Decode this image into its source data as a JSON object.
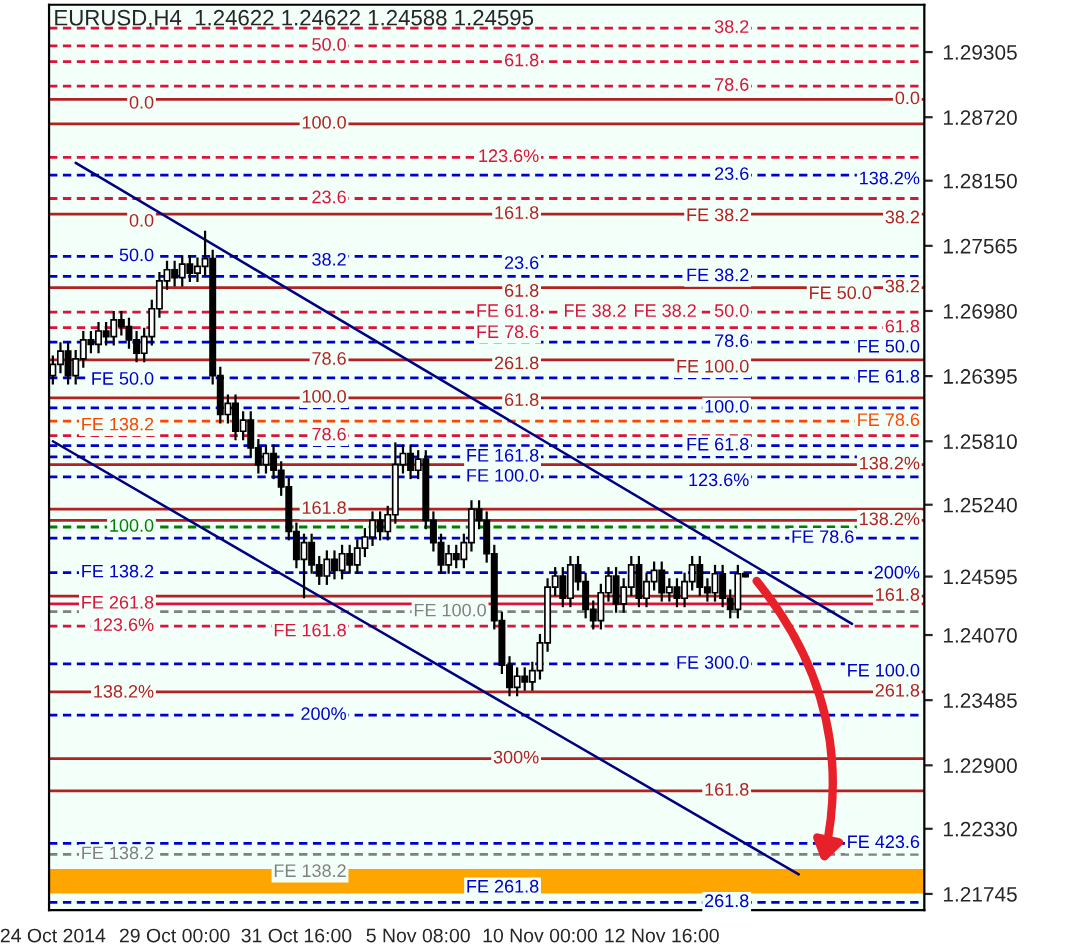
{
  "chart_data": {
    "type": "candlestick",
    "title": "EURUSD,H4  1.24622 1.24622 1.24588 1.24595",
    "categories": [
      "24 Oct 2014",
      null,
      null,
      null,
      null,
      null,
      null,
      null,
      null,
      null,
      null,
      null,
      null,
      null,
      null,
      null,
      "29 Oct 00:00",
      null,
      null,
      null,
      null,
      null,
      null,
      null,
      null,
      null,
      null,
      null,
      null,
      null,
      null,
      null,
      "31 Oct 16:00",
      null,
      null,
      null,
      null,
      null,
      null,
      null,
      null,
      null,
      null,
      null,
      null,
      null,
      null,
      null,
      "5 Nov 08:00",
      null,
      null,
      null,
      null,
      null,
      null,
      null,
      null,
      null,
      null,
      null,
      null,
      null,
      null,
      null,
      "10 Nov 00:00",
      null,
      null,
      null,
      null,
      null,
      null,
      null,
      null,
      null,
      null,
      null,
      null,
      null,
      null,
      null,
      "12 Nov 16:00",
      null,
      null,
      null,
      null,
      null,
      null,
      null,
      null,
      null,
      null,
      null,
      null,
      null,
      null,
      null,
      null,
      null,
      null,
      null,
      null,
      null,
      null,
      null,
      null,
      null,
      null,
      null,
      null,
      null,
      null,
      null,
      null,
      null,
      null
    ],
    "ohlc": [
      [
        1.264,
        1.2658,
        1.2632,
        1.265
      ],
      [
        1.265,
        1.267,
        1.2642,
        1.2662
      ],
      [
        1.2662,
        1.267,
        1.2632,
        1.264
      ],
      [
        1.264,
        1.2663,
        1.2632,
        1.2655
      ],
      [
        1.2655,
        1.268,
        1.2647,
        1.2672
      ],
      [
        1.2672,
        1.268,
        1.266,
        1.2668
      ],
      [
        1.2668,
        1.2688,
        1.266,
        1.268
      ],
      [
        1.268,
        1.2688,
        1.2667,
        1.2675
      ],
      [
        1.2675,
        1.2698,
        1.2667,
        1.269
      ],
      [
        1.269,
        1.2698,
        1.2676,
        1.2684
      ],
      [
        1.2684,
        1.2692,
        1.2664,
        1.2672
      ],
      [
        1.2672,
        1.268,
        1.2652,
        1.266
      ],
      [
        1.266,
        1.2683,
        1.2652,
        1.2675
      ],
      [
        1.2675,
        1.2708,
        1.2667,
        1.27
      ],
      [
        1.27,
        1.2733,
        1.2692,
        1.2725
      ],
      [
        1.2725,
        1.2743,
        1.2717,
        1.2735
      ],
      [
        1.2735,
        1.2743,
        1.272,
        1.2728
      ],
      [
        1.2728,
        1.2748,
        1.272,
        1.274
      ],
      [
        1.274,
        1.2748,
        1.2724,
        1.2732
      ],
      [
        1.2732,
        1.2746,
        1.2724,
        1.2738
      ],
      [
        1.2738,
        1.277,
        1.273,
        1.2745
      ],
      [
        1.2745,
        1.2753,
        1.2632,
        1.264
      ],
      [
        1.264,
        1.2648,
        1.2597,
        1.2605
      ],
      [
        1.2605,
        1.2623,
        1.2597,
        1.2615
      ],
      [
        1.2615,
        1.2623,
        1.2582,
        1.259
      ],
      [
        1.259,
        1.2608,
        1.2582,
        1.26
      ],
      [
        1.26,
        1.2608,
        1.2567,
        1.2575
      ],
      [
        1.2575,
        1.2583,
        1.2552,
        1.256
      ],
      [
        1.256,
        1.2578,
        1.2552,
        1.257
      ],
      [
        1.257,
        1.2578,
        1.2547,
        1.2555
      ],
      [
        1.2555,
        1.2563,
        1.2532,
        1.254
      ],
      [
        1.254,
        1.2548,
        1.2492,
        1.25
      ],
      [
        1.25,
        1.2508,
        1.2467,
        1.2475
      ],
      [
        1.2475,
        1.2498,
        1.244,
        1.249
      ],
      [
        1.249,
        1.2498,
        1.2462,
        1.247
      ],
      [
        1.247,
        1.2478,
        1.2452,
        1.246
      ],
      [
        1.246,
        1.2483,
        1.2452,
        1.2475
      ],
      [
        1.2475,
        1.2483,
        1.2457,
        1.2465
      ],
      [
        1.2465,
        1.2488,
        1.2457,
        1.248
      ],
      [
        1.248,
        1.2488,
        1.2462,
        1.247
      ],
      [
        1.247,
        1.2493,
        1.2462,
        1.2485
      ],
      [
        1.2485,
        1.2503,
        1.2477,
        1.2495
      ],
      [
        1.2495,
        1.2518,
        1.2487,
        1.251
      ],
      [
        1.251,
        1.2518,
        1.2492,
        1.25
      ],
      [
        1.25,
        1.2523,
        1.2492,
        1.2515
      ],
      [
        1.2515,
        1.258,
        1.2507,
        1.256
      ],
      [
        1.256,
        1.2578,
        1.2552,
        1.257
      ],
      [
        1.257,
        1.2578,
        1.2547,
        1.2555
      ],
      [
        1.2555,
        1.2573,
        1.2547,
        1.2565
      ],
      [
        1.2565,
        1.2573,
        1.2502,
        1.251
      ],
      [
        1.251,
        1.2518,
        1.2482,
        1.249
      ],
      [
        1.249,
        1.2498,
        1.2462,
        1.247
      ],
      [
        1.247,
        1.2488,
        1.2462,
        1.248
      ],
      [
        1.248,
        1.2488,
        1.2467,
        1.2475
      ],
      [
        1.2475,
        1.2498,
        1.2467,
        1.249
      ],
      [
        1.249,
        1.2528,
        1.2482,
        1.252
      ],
      [
        1.252,
        1.2528,
        1.2502,
        1.251
      ],
      [
        1.251,
        1.2518,
        1.2472,
        1.248
      ],
      [
        1.248,
        1.2488,
        1.2412,
        1.242
      ],
      [
        1.242,
        1.2428,
        1.2372,
        1.238
      ],
      [
        1.238,
        1.2388,
        1.2352,
        1.236
      ],
      [
        1.236,
        1.2378,
        1.2352,
        1.237
      ],
      [
        1.237,
        1.2378,
        1.2357,
        1.2365
      ],
      [
        1.2365,
        1.2383,
        1.2357,
        1.2375
      ],
      [
        1.2375,
        1.2408,
        1.2367,
        1.24
      ],
      [
        1.24,
        1.2458,
        1.2392,
        1.245
      ],
      [
        1.245,
        1.2468,
        1.2442,
        1.246
      ],
      [
        1.246,
        1.2468,
        1.2432,
        1.244
      ],
      [
        1.244,
        1.2478,
        1.2432,
        1.247
      ],
      [
        1.247,
        1.2478,
        1.2447,
        1.2455
      ],
      [
        1.2455,
        1.2463,
        1.2422,
        1.243
      ],
      [
        1.243,
        1.2438,
        1.2412,
        1.242
      ],
      [
        1.242,
        1.2453,
        1.2412,
        1.2445
      ],
      [
        1.2445,
        1.2468,
        1.2437,
        1.246
      ],
      [
        1.246,
        1.2468,
        1.2427,
        1.2435
      ],
      [
        1.2435,
        1.2458,
        1.2427,
        1.245
      ],
      [
        1.245,
        1.2478,
        1.2442,
        1.247
      ],
      [
        1.247,
        1.2478,
        1.2432,
        1.244
      ],
      [
        1.244,
        1.2463,
        1.2432,
        1.2455
      ],
      [
        1.2455,
        1.2473,
        1.2447,
        1.2465
      ],
      [
        1.2465,
        1.2473,
        1.2437,
        1.2445
      ],
      [
        1.2445,
        1.2458,
        1.2437,
        1.245
      ],
      [
        1.245,
        1.2458,
        1.2432,
        1.244
      ],
      [
        1.244,
        1.2463,
        1.2432,
        1.2455
      ],
      [
        1.2455,
        1.2478,
        1.2447,
        1.247
      ],
      [
        1.247,
        1.2478,
        1.2442,
        1.245
      ],
      [
        1.245,
        1.2458,
        1.2437,
        1.2445
      ],
      [
        1.2445,
        1.247,
        1.2437,
        1.2462
      ],
      [
        1.2462,
        1.247,
        1.2432,
        1.244
      ],
      [
        1.244,
        1.2448,
        1.2422,
        1.243
      ],
      [
        1.243,
        1.247,
        1.2422,
        1.2462
      ],
      [
        1.24622,
        1.24622,
        1.24588,
        1.24595
      ],
      null,
      null,
      null,
      null,
      null,
      null,
      null,
      null,
      null,
      null,
      null,
      null,
      null,
      null,
      null,
      null,
      null,
      null,
      null,
      null,
      null,
      null,
      null
    ],
    "series": [
      {
        "type": "line",
        "color": "#000080",
        "values": [
          null,
          null,
          null,
          1.2831,
          null,
          null,
          null,
          null,
          null,
          null,
          null,
          null,
          null,
          null,
          null,
          null,
          null,
          null,
          null,
          null,
          null,
          null,
          null,
          null,
          null,
          null,
          null,
          null,
          null,
          null,
          null,
          null,
          null,
          null,
          null,
          null,
          null,
          null,
          null,
          null,
          null,
          null,
          null,
          null,
          null,
          null,
          null,
          null,
          null,
          null,
          null,
          null,
          null,
          null,
          null,
          null,
          null,
          null,
          null,
          null,
          null,
          null,
          null,
          null,
          null,
          null,
          null,
          null,
          null,
          null,
          null,
          null,
          null,
          null,
          null,
          null,
          null,
          null,
          null,
          null,
          null,
          null,
          null,
          null,
          null,
          null,
          null,
          null,
          null,
          null,
          null,
          null,
          null,
          null,
          null,
          null,
          null,
          null,
          null,
          null,
          null,
          null,
          null,
          null,
          null,
          1.2417,
          null,
          null,
          null,
          null,
          null,
          null,
          null,
          null,
          null
        ]
      },
      {
        "type": "line",
        "color": "#000080",
        "values": [
          1.2581,
          null,
          null,
          null,
          null,
          null,
          null,
          null,
          null,
          null,
          null,
          null,
          null,
          null,
          null,
          null,
          null,
          null,
          null,
          null,
          null,
          null,
          null,
          null,
          null,
          null,
          null,
          null,
          null,
          null,
          null,
          null,
          null,
          null,
          null,
          null,
          null,
          null,
          null,
          null,
          null,
          null,
          null,
          null,
          null,
          null,
          null,
          null,
          null,
          null,
          null,
          null,
          null,
          null,
          null,
          null,
          null,
          null,
          null,
          null,
          null,
          null,
          null,
          null,
          null,
          null,
          null,
          null,
          null,
          null,
          null,
          null,
          null,
          null,
          null,
          null,
          null,
          null,
          null,
          null,
          null,
          null,
          null,
          null,
          null,
          null,
          null,
          null,
          null,
          null,
          null,
          null,
          null,
          null,
          null,
          null,
          null,
          null,
          1.2192,
          null,
          null,
          null,
          null,
          null,
          null,
          null,
          null,
          null,
          null,
          null,
          null,
          null,
          null,
          null,
          null
        ]
      }
    ],
    "ylim": [
      1.216,
      1.2973
    ],
    "yticks": [
      {
        "value": 1.29305,
        "label": "1.29305"
      },
      {
        "value": 1.2872,
        "label": "1.28720"
      },
      {
        "value": 1.2815,
        "label": "1.28150"
      },
      {
        "value": 1.27565,
        "label": "1.27565"
      },
      {
        "value": 1.2698,
        "label": "1.26980"
      },
      {
        "value": 1.26395,
        "label": "1.26395"
      },
      {
        "value": 1.2581,
        "label": "1.25810"
      },
      {
        "value": 1.2524,
        "label": "1.25240"
      },
      {
        "value": 1.24595,
        "label": "1.24595"
      },
      {
        "value": 1.2407,
        "label": "1.24070"
      },
      {
        "value": 1.23485,
        "label": "1.23485"
      },
      {
        "value": 1.229,
        "label": "1.22900"
      },
      {
        "value": 1.2233,
        "label": "1.22330"
      },
      {
        "value": 1.21745,
        "label": "1.21745"
      }
    ],
    "ref_lines": [
      {
        "axis": "y",
        "value": 1.2952,
        "color": "#dc143c",
        "line_style": "dashed"
      },
      {
        "axis": "y",
        "value": 1.2936,
        "color": "#dc143c",
        "line_style": "dashed"
      },
      {
        "axis": "y",
        "value": 1.2922,
        "color": "#dc143c",
        "line_style": "dashed"
      },
      {
        "axis": "y",
        "value": 1.29,
        "color": "#dc143c",
        "line_style": "dashed"
      },
      {
        "axis": "y",
        "value": 1.2888,
        "color": "#b22222",
        "line_style": "solid"
      },
      {
        "axis": "y",
        "value": 1.2866,
        "color": "#b22222",
        "line_style": "solid"
      },
      {
        "axis": "y",
        "value": 1.2836,
        "color": "#dc143c",
        "line_style": "dashed"
      },
      {
        "axis": "y",
        "value": 1.282,
        "color": "#0000cd",
        "line_style": "dashed"
      },
      {
        "axis": "y",
        "value": 1.2799,
        "color": "#dc143c",
        "line_style": "dashed"
      },
      {
        "axis": "y",
        "value": 1.2785,
        "color": "#b22222",
        "line_style": "solid"
      },
      {
        "axis": "y",
        "value": 1.2747,
        "color": "#0000cd",
        "line_style": "dashed"
      },
      {
        "axis": "y",
        "value": 1.2729,
        "color": "#0000cd",
        "line_style": "dashed"
      },
      {
        "axis": "y",
        "value": 1.2719,
        "color": "#b22222",
        "line_style": "solid"
      },
      {
        "axis": "y",
        "value": 1.2697,
        "color": "#dc143c",
        "line_style": "dashed"
      },
      {
        "axis": "y",
        "value": 1.2683,
        "color": "#dc143c",
        "line_style": "dashed"
      },
      {
        "axis": "y",
        "value": 1.267,
        "color": "#0000cd",
        "line_style": "dashed"
      },
      {
        "axis": "y",
        "value": 1.2654,
        "color": "#b22222",
        "line_style": "solid"
      },
      {
        "axis": "y",
        "value": 1.2638,
        "color": "#0000cd",
        "line_style": "dashed"
      },
      {
        "axis": "y",
        "value": 1.262,
        "color": "#b22222",
        "line_style": "solid"
      },
      {
        "axis": "y",
        "value": 1.2611,
        "color": "#0000cd",
        "line_style": "dashed"
      },
      {
        "axis": "y",
        "value": 1.2599,
        "color": "#ff4500",
        "line_style": "dashed"
      },
      {
        "axis": "y",
        "value": 1.2586,
        "color": "#dc143c",
        "line_style": "dashed"
      },
      {
        "axis": "y",
        "value": 1.2577,
        "color": "#0000cd",
        "line_style": "dashed"
      },
      {
        "axis": "y",
        "value": 1.2567,
        "color": "#0000cd",
        "line_style": "dashed"
      },
      {
        "axis": "y",
        "value": 1.256,
        "color": "#b22222",
        "line_style": "solid"
      },
      {
        "axis": "y",
        "value": 1.2549,
        "color": "#0000cd",
        "line_style": "dashed"
      },
      {
        "axis": "y",
        "value": 1.252,
        "color": "#b22222",
        "line_style": "solid"
      },
      {
        "axis": "y",
        "value": 1.251,
        "color": "#b22222",
        "line_style": "solid"
      },
      {
        "axis": "y",
        "value": 1.2504,
        "color": "#008000",
        "line_style": "dashed"
      },
      {
        "axis": "y",
        "value": 1.2494,
        "color": "#0000cd",
        "line_style": "dashed"
      },
      {
        "axis": "y",
        "value": 1.2463,
        "color": "#0000cd",
        "line_style": "dashed"
      },
      {
        "axis": "y",
        "value": 1.2442,
        "color": "#b22222",
        "line_style": "solid"
      },
      {
        "axis": "y",
        "value": 1.2435,
        "color": "#dc143c",
        "line_style": "solid"
      },
      {
        "axis": "y",
        "value": 1.2428,
        "color": "#808080",
        "line_style": "dashed"
      },
      {
        "axis": "y",
        "value": 1.2415,
        "color": "#dc143c",
        "line_style": "dashed"
      },
      {
        "axis": "y",
        "value": 1.2381,
        "color": "#0000cd",
        "line_style": "dashed"
      },
      {
        "axis": "y",
        "value": 1.2356,
        "color": "#b22222",
        "line_style": "solid"
      },
      {
        "axis": "y",
        "value": 1.2335,
        "color": "#0000cd",
        "line_style": "dashed"
      },
      {
        "axis": "y",
        "value": 1.2296,
        "color": "#b22222",
        "line_style": "solid"
      },
      {
        "axis": "y",
        "value": 1.2267,
        "color": "#b22222",
        "line_style": "solid"
      },
      {
        "axis": "y",
        "value": 1.222,
        "color": "#0000cd",
        "line_style": "dashed"
      },
      {
        "axis": "y",
        "value": 1.221,
        "color": "#808080",
        "line_style": "dashed"
      },
      {
        "axis": "y",
        "value": 1.2167,
        "color": "#0000cd",
        "line_style": "dashed"
      }
    ],
    "annotations": [
      {
        "text": "38.2",
        "y": 1.2952
      },
      {
        "text": "50.0",
        "y": 1.2936
      },
      {
        "text": "61.8",
        "y": 1.2922
      },
      {
        "text": "78.6",
        "y": 1.29
      },
      {
        "text": "0.0",
        "y": 1.2888
      },
      {
        "text": "0.0",
        "y": 1.2884
      },
      {
        "text": "100.0",
        "y": 1.2866
      },
      {
        "text": "123.6%",
        "y": 1.2836
      },
      {
        "text": "23.6",
        "y": 1.282
      },
      {
        "text": "138.2%",
        "y": 1.2816
      },
      {
        "text": "23.6",
        "y": 1.2799
      },
      {
        "text": "161.8",
        "y": 1.2785
      },
      {
        "text": "FE 38.2",
        "y": 1.2783
      },
      {
        "text": "38.2",
        "y": 1.2781
      },
      {
        "text": "0.0",
        "y": 1.2778
      },
      {
        "text": "50.0",
        "y": 1.2747
      },
      {
        "text": "38.2",
        "y": 1.2743
      },
      {
        "text": "23.6",
        "y": 1.274
      },
      {
        "text": "FE 38.2",
        "y": 1.2729
      },
      {
        "text": "38.2",
        "y": 1.2719
      },
      {
        "text": "61.8",
        "y": 1.2715
      },
      {
        "text": "FE 50.0",
        "y": 1.2713
      },
      {
        "text": "FE 61.8",
        "y": 1.2697
      },
      {
        "text": "50.0",
        "y": 1.2697
      },
      {
        "text": "FE 38.2",
        "y": 1.2697
      },
      {
        "text": "FE 38.2",
        "y": 1.2697
      },
      {
        "text": "61.8",
        "y": 1.2683
      },
      {
        "text": "FE 78.6",
        "y": 1.2678
      },
      {
        "text": "78.6",
        "y": 1.267
      },
      {
        "text": "FE 50.0",
        "y": 1.2665
      },
      {
        "text": "78.6",
        "y": 1.2654
      },
      {
        "text": "261.8",
        "y": 1.265
      },
      {
        "text": "FE 100.0",
        "y": 1.2647
      },
      {
        "text": "FE 61.8",
        "y": 1.2638
      },
      {
        "text": "FE 50.0",
        "y": 1.2636
      },
      {
        "text": "100.0",
        "y": 1.262
      },
      {
        "text": "61.8",
        "y": 1.2617
      },
      {
        "text": "100.0",
        "y": 1.2611
      },
      {
        "text": "FE 78.6",
        "y": 1.2599
      },
      {
        "text": "FE 138.2",
        "y": 1.2595
      },
      {
        "text": "78.6",
        "y": 1.2586
      },
      {
        "text": "FE 61.8",
        "y": 1.2577
      },
      {
        "text": "FE 161.8",
        "y": 1.2567
      },
      {
        "text": "138.2%",
        "y": 1.256
      },
      {
        "text": "FE 100.0",
        "y": 1.2549
      },
      {
        "text": "123.6%",
        "y": 1.2545
      },
      {
        "text": "161.8",
        "y": 1.252
      },
      {
        "text": "138.2%",
        "y": 1.251
      },
      {
        "text": "100.0",
        "y": 1.2504
      },
      {
        "text": "FE 78.6",
        "y": 1.2494
      },
      {
        "text": "FE 138.2",
        "y": 1.2463
      },
      {
        "text": "200%",
        "y": 1.2462
      },
      {
        "text": "161.8",
        "y": 1.2442
      },
      {
        "text": "FE 261.8",
        "y": 1.2435
      },
      {
        "text": "FE 100.0",
        "y": 1.2428
      },
      {
        "text": "123.6%",
        "y": 1.2415
      },
      {
        "text": "FE 161.8",
        "y": 1.241
      },
      {
        "text": "FE 300.0",
        "y": 1.2381
      },
      {
        "text": "FE 100.0",
        "y": 1.2374
      },
      {
        "text": "261.8",
        "y": 1.2356
      },
      {
        "text": "138.2%",
        "y": 1.2355
      },
      {
        "text": "200%",
        "y": 1.2335
      },
      {
        "text": "300%",
        "y": 1.2296
      },
      {
        "text": "161.8",
        "y": 1.2267
      },
      {
        "text": "FE 423.6",
        "y": 1.222
      },
      {
        "text": "FE 138.2",
        "y": 1.221
      },
      {
        "text": "FE 138.2",
        "y": 1.2194
      },
      {
        "text": "FE 261.8",
        "y": 1.218
      },
      {
        "text": "261.8",
        "y": 1.2167
      }
    ],
    "bands": [
      {
        "axis": "y",
        "from": 1.2175,
        "to": 1.2197,
        "color": "#ffa500"
      }
    ],
    "grid": false,
    "legend": false
  }
}
